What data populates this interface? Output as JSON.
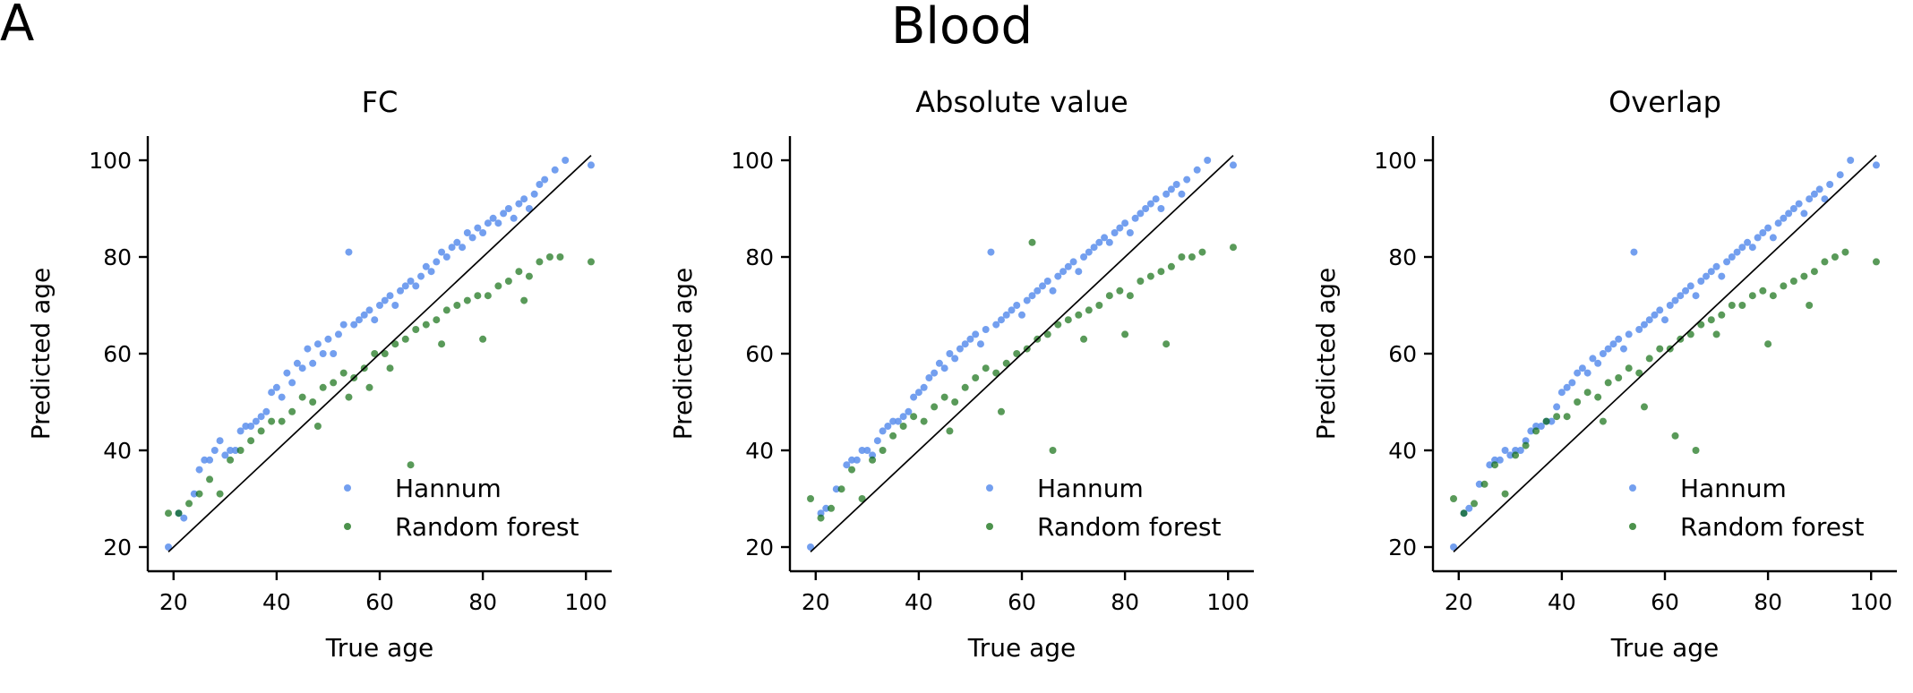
{
  "figure": {
    "panel_letter": "A",
    "suptitle": "Blood"
  },
  "legend": {
    "entries": [
      {
        "label": "Hannum",
        "color": "#6495ED"
      },
      {
        "label": "Random forest",
        "color": "#006400"
      }
    ]
  },
  "chart_data": [
    {
      "type": "scatter",
      "title": "FC",
      "xlabel": "True age",
      "ylabel": "Predicted age",
      "xlim": [
        15,
        105
      ],
      "ylim": [
        15,
        105
      ],
      "xticks": [
        20,
        40,
        60,
        80,
        100
      ],
      "yticks": [
        20,
        40,
        60,
        80,
        100
      ],
      "grid": false,
      "legend_position": "lower-right",
      "identity_line": [
        [
          19,
          19
        ],
        [
          101,
          101
        ]
      ],
      "series": [
        {
          "name": "Hannum",
          "color": "#6495ED",
          "x": [
            19,
            21,
            22,
            24,
            25,
            26,
            27,
            28,
            29,
            30,
            31,
            32,
            33,
            34,
            35,
            36,
            37,
            38,
            39,
            40,
            41,
            42,
            43,
            44,
            45,
            46,
            47,
            48,
            49,
            50,
            51,
            52,
            53,
            54,
            55,
            56,
            57,
            58,
            59,
            60,
            61,
            62,
            63,
            64,
            65,
            66,
            67,
            68,
            69,
            70,
            71,
            72,
            73,
            74,
            75,
            76,
            77,
            78,
            79,
            80,
            81,
            82,
            83,
            84,
            85,
            86,
            87,
            88,
            89,
            90,
            91,
            92,
            94,
            96,
            101
          ],
          "y": [
            20,
            27,
            26,
            31,
            36,
            38,
            38,
            40,
            42,
            39,
            40,
            40,
            44,
            45,
            45,
            46,
            47,
            48,
            52,
            53,
            51,
            56,
            54,
            58,
            57,
            61,
            58,
            62,
            60,
            63,
            60,
            64,
            66,
            81,
            66,
            67,
            68,
            69,
            67,
            70,
            71,
            72,
            70,
            73,
            74,
            75,
            74,
            76,
            78,
            77,
            79,
            81,
            80,
            82,
            83,
            82,
            85,
            84,
            86,
            85,
            87,
            88,
            87,
            89,
            90,
            88,
            91,
            92,
            90,
            93,
            95,
            96,
            98,
            100,
            99
          ]
        },
        {
          "name": "Random forest",
          "color": "#006400",
          "x": [
            19,
            21,
            23,
            25,
            27,
            29,
            31,
            33,
            35,
            37,
            39,
            41,
            43,
            45,
            47,
            49,
            51,
            53,
            55,
            57,
            59,
            61,
            63,
            65,
            67,
            69,
            71,
            73,
            75,
            77,
            79,
            81,
            83,
            85,
            87,
            89,
            91,
            93,
            95,
            101,
            66,
            72,
            80,
            88,
            54,
            58,
            62,
            48
          ],
          "y": [
            27,
            27,
            29,
            31,
            34,
            31,
            38,
            40,
            42,
            44,
            46,
            46,
            48,
            51,
            50,
            53,
            54,
            56,
            55,
            57,
            60,
            60,
            62,
            63,
            65,
            66,
            67,
            69,
            70,
            71,
            72,
            72,
            74,
            75,
            77,
            76,
            79,
            80,
            80,
            79,
            37,
            62,
            63,
            71,
            51,
            53,
            57,
            45
          ]
        }
      ]
    },
    {
      "type": "scatter",
      "title": "Absolute value",
      "xlabel": "True age",
      "ylabel": "Predicted age",
      "xlim": [
        15,
        105
      ],
      "ylim": [
        15,
        105
      ],
      "xticks": [
        20,
        40,
        60,
        80,
        100
      ],
      "yticks": [
        20,
        40,
        60,
        80,
        100
      ],
      "grid": false,
      "legend_position": "lower-right",
      "identity_line": [
        [
          19,
          19
        ],
        [
          101,
          101
        ]
      ],
      "series": [
        {
          "name": "Hannum",
          "color": "#6495ED",
          "x": [
            19,
            21,
            22,
            24,
            26,
            27,
            28,
            29,
            30,
            31,
            32,
            33,
            34,
            35,
            36,
            37,
            38,
            39,
            40,
            41,
            42,
            43,
            44,
            45,
            46,
            47,
            48,
            49,
            50,
            51,
            52,
            53,
            54,
            55,
            56,
            57,
            58,
            59,
            60,
            61,
            62,
            63,
            64,
            65,
            66,
            67,
            68,
            69,
            70,
            71,
            72,
            73,
            74,
            75,
            76,
            77,
            78,
            79,
            80,
            81,
            82,
            83,
            84,
            85,
            86,
            87,
            88,
            89,
            90,
            91,
            92,
            94,
            96,
            101
          ],
          "y": [
            20,
            27,
            28,
            32,
            37,
            38,
            38,
            40,
            40,
            39,
            42,
            44,
            45,
            46,
            46,
            47,
            48,
            51,
            52,
            53,
            55,
            56,
            58,
            57,
            60,
            59,
            61,
            62,
            63,
            64,
            62,
            65,
            81,
            66,
            67,
            68,
            69,
            70,
            68,
            71,
            72,
            73,
            74,
            75,
            73,
            76,
            77,
            78,
            79,
            77,
            80,
            81,
            82,
            83,
            84,
            83,
            85,
            86,
            87,
            85,
            88,
            89,
            90,
            91,
            92,
            90,
            93,
            94,
            95,
            93,
            96,
            98,
            100,
            99
          ]
        },
        {
          "name": "Random forest",
          "color": "#006400",
          "x": [
            19,
            21,
            23,
            25,
            27,
            29,
            31,
            33,
            35,
            37,
            39,
            41,
            43,
            45,
            47,
            49,
            51,
            53,
            55,
            57,
            59,
            61,
            63,
            65,
            67,
            69,
            71,
            73,
            75,
            77,
            79,
            81,
            83,
            85,
            87,
            89,
            91,
            93,
            95,
            101,
            62,
            66,
            72,
            80,
            88,
            56,
            46
          ],
          "y": [
            30,
            26,
            28,
            32,
            36,
            30,
            38,
            40,
            43,
            45,
            47,
            46,
            49,
            51,
            50,
            53,
            55,
            57,
            56,
            58,
            60,
            61,
            63,
            64,
            66,
            67,
            68,
            69,
            70,
            72,
            73,
            72,
            75,
            76,
            77,
            78,
            80,
            80,
            81,
            82,
            83,
            40,
            63,
            64,
            62,
            48,
            44
          ]
        }
      ]
    },
    {
      "type": "scatter",
      "title": "Overlap",
      "xlabel": "True age",
      "ylabel": "Predicted age",
      "xlim": [
        15,
        105
      ],
      "ylim": [
        15,
        105
      ],
      "xticks": [
        20,
        40,
        60,
        80,
        100
      ],
      "yticks": [
        20,
        40,
        60,
        80,
        100
      ],
      "grid": false,
      "legend_position": "lower-right",
      "identity_line": [
        [
          19,
          19
        ],
        [
          101,
          101
        ]
      ],
      "series": [
        {
          "name": "Hannum",
          "color": "#6495ED",
          "x": [
            19,
            21,
            22,
            24,
            26,
            27,
            28,
            29,
            30,
            31,
            32,
            33,
            34,
            35,
            36,
            37,
            38,
            39,
            40,
            41,
            42,
            43,
            44,
            45,
            46,
            47,
            48,
            49,
            50,
            51,
            52,
            53,
            54,
            55,
            56,
            57,
            58,
            59,
            60,
            61,
            62,
            63,
            64,
            65,
            66,
            67,
            68,
            69,
            70,
            71,
            72,
            73,
            74,
            75,
            76,
            77,
            78,
            79,
            80,
            81,
            82,
            83,
            84,
            85,
            86,
            87,
            88,
            89,
            90,
            91,
            92,
            94,
            96,
            101
          ],
          "y": [
            20,
            27,
            28,
            33,
            37,
            38,
            38,
            40,
            39,
            40,
            40,
            42,
            44,
            45,
            45,
            46,
            46,
            49,
            52,
            53,
            54,
            56,
            57,
            56,
            59,
            58,
            60,
            61,
            62,
            63,
            61,
            64,
            81,
            65,
            66,
            67,
            68,
            69,
            67,
            70,
            71,
            72,
            73,
            74,
            72,
            75,
            76,
            77,
            78,
            76,
            79,
            80,
            81,
            82,
            83,
            82,
            84,
            85,
            86,
            84,
            87,
            88,
            89,
            90,
            91,
            89,
            92,
            93,
            94,
            92,
            95,
            97,
            100,
            99
          ]
        },
        {
          "name": "Random forest",
          "color": "#006400",
          "x": [
            19,
            21,
            23,
            25,
            27,
            29,
            31,
            33,
            35,
            37,
            39,
            41,
            43,
            45,
            47,
            49,
            51,
            53,
            55,
            57,
            59,
            61,
            63,
            65,
            67,
            69,
            71,
            73,
            75,
            77,
            79,
            81,
            83,
            85,
            87,
            89,
            91,
            93,
            95,
            101,
            62,
            66,
            70,
            80,
            88,
            56,
            48
          ],
          "y": [
            30,
            27,
            29,
            33,
            37,
            31,
            39,
            41,
            44,
            46,
            47,
            47,
            50,
            52,
            51,
            54,
            55,
            57,
            56,
            59,
            61,
            61,
            63,
            64,
            66,
            67,
            68,
            70,
            70,
            72,
            73,
            72,
            74,
            75,
            76,
            77,
            79,
            80,
            81,
            79,
            43,
            40,
            64,
            62,
            70,
            49,
            46
          ]
        }
      ]
    }
  ]
}
